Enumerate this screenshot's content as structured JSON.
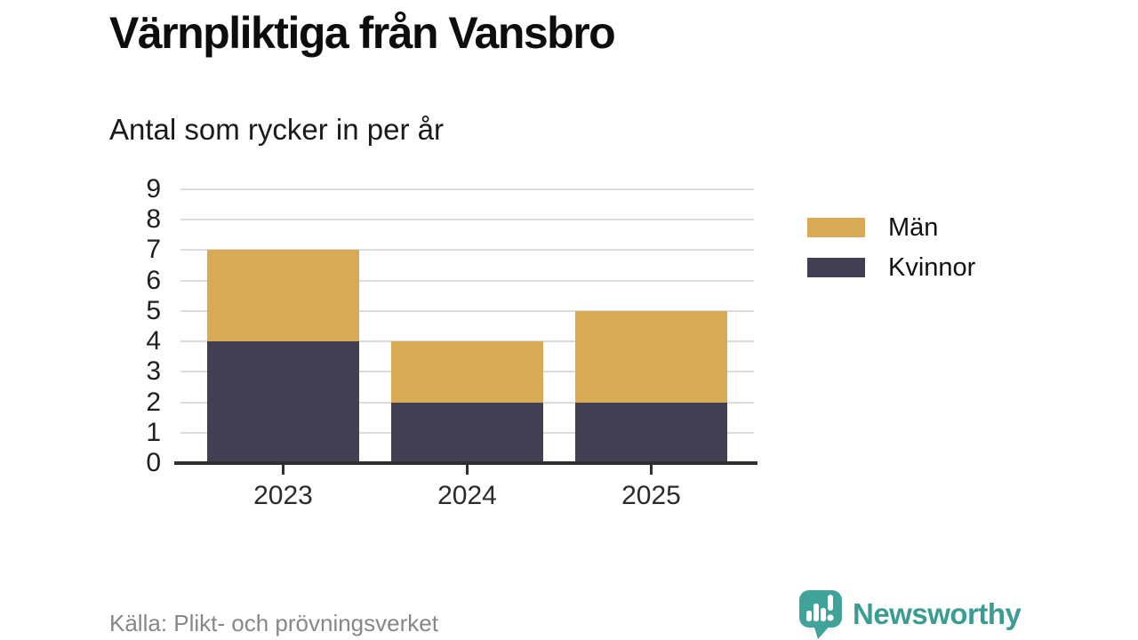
{
  "title": "Värnpliktiga från Vansbro",
  "subtitle": "Antal som rycker in per år",
  "source": "Källa: Plikt- och prövningsverket",
  "brand": {
    "name": "Newsworthy",
    "icon": "newsworthy-speech-bubble-chart-icon",
    "color": "#3A9C93",
    "icon_color": "#40A39A"
  },
  "colors": {
    "grid": "#DCDCDC",
    "axis": "#2F2F2F",
    "source_text": "#878787",
    "men": "#D9AA55",
    "women": "#413F51"
  },
  "chart_data": {
    "type": "bar",
    "stacked": true,
    "title": "Värnpliktiga från Vansbro",
    "subtitle": "Antal som rycker in per år",
    "categories": [
      "2023",
      "2024",
      "2025"
    ],
    "series": [
      {
        "name": "Kvinnor",
        "color": "#413F51",
        "values": [
          4,
          2,
          2
        ]
      },
      {
        "name": "Män",
        "color": "#D9AA55",
        "values": [
          3,
          2,
          3
        ]
      }
    ],
    "totals": [
      7,
      4,
      5
    ],
    "ylim": [
      0,
      9
    ],
    "yticks": [
      0,
      1,
      2,
      3,
      4,
      5,
      6,
      7,
      8,
      9
    ],
    "grid": "horizontal",
    "legend_position": "right",
    "legend_order": [
      "Män",
      "Kvinnor"
    ]
  }
}
